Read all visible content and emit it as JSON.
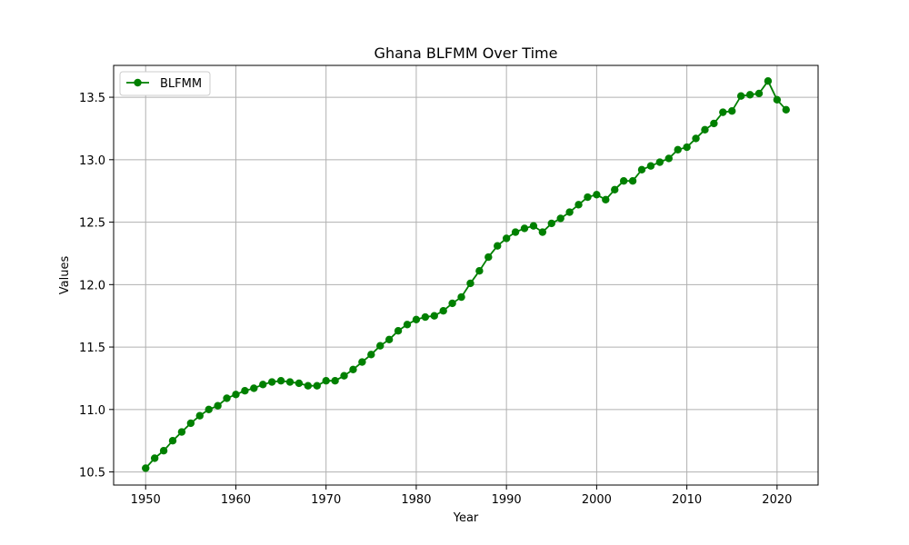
{
  "chart_data": {
    "type": "line",
    "title": "Ghana BLFMM Over Time",
    "xlabel": "Year",
    "ylabel": "Values",
    "xlim": [
      1946.45,
      2024.55
    ],
    "ylim": [
      10.395,
      13.755
    ],
    "xticks": [
      1950,
      1960,
      1970,
      1980,
      1990,
      2000,
      2010,
      2020
    ],
    "yticks": [
      10.5,
      11.0,
      11.5,
      12.0,
      12.5,
      13.0,
      13.5
    ],
    "ytick_labels": [
      "10.5",
      "11.0",
      "11.5",
      "12.0",
      "12.5",
      "13.0",
      "13.5"
    ],
    "grid": true,
    "legend_position": "top-left",
    "series": [
      {
        "name": "BLFMM",
        "color": "#008000",
        "marker": "circle",
        "x": [
          1950,
          1951,
          1952,
          1953,
          1954,
          1955,
          1956,
          1957,
          1958,
          1959,
          1960,
          1961,
          1962,
          1963,
          1964,
          1965,
          1966,
          1967,
          1968,
          1969,
          1970,
          1971,
          1972,
          1973,
          1974,
          1975,
          1976,
          1977,
          1978,
          1979,
          1980,
          1981,
          1982,
          1983,
          1984,
          1985,
          1986,
          1987,
          1988,
          1989,
          1990,
          1991,
          1992,
          1993,
          1994,
          1995,
          1996,
          1997,
          1998,
          1999,
          2000,
          2001,
          2002,
          2003,
          2004,
          2005,
          2006,
          2007,
          2008,
          2009,
          2010,
          2011,
          2012,
          2013,
          2014,
          2015,
          2016,
          2017,
          2018,
          2019,
          2020,
          2021
        ],
        "y": [
          10.53,
          10.61,
          10.67,
          10.75,
          10.82,
          10.89,
          10.95,
          11.0,
          11.03,
          11.09,
          11.12,
          11.15,
          11.17,
          11.2,
          11.22,
          11.23,
          11.22,
          11.21,
          11.19,
          11.19,
          11.23,
          11.23,
          11.27,
          11.32,
          11.38,
          11.44,
          11.51,
          11.56,
          11.63,
          11.68,
          11.72,
          11.74,
          11.75,
          11.79,
          11.85,
          11.9,
          12.01,
          12.11,
          12.22,
          12.31,
          12.37,
          12.42,
          12.45,
          12.47,
          12.42,
          12.49,
          12.53,
          12.58,
          12.64,
          12.7,
          12.72,
          12.68,
          12.76,
          12.83,
          12.83,
          12.92,
          12.95,
          12.98,
          13.01,
          13.08,
          13.1,
          13.17,
          13.24,
          13.29,
          13.38,
          13.39,
          13.51,
          13.52,
          13.53,
          13.63,
          13.48,
          13.4
        ]
      }
    ]
  }
}
